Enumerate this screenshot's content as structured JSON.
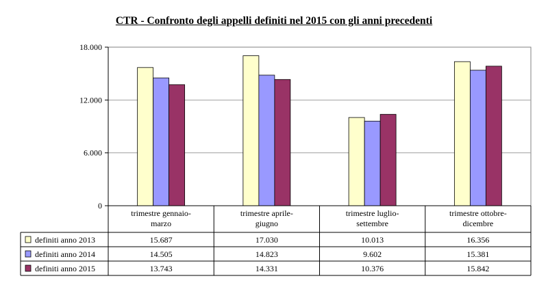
{
  "chart_data": {
    "type": "bar",
    "title": "CTR - Confronto degli appelli definiti nel 2015 con gli anni precedenti",
    "categories": [
      [
        "trimestre gennaio-",
        "marzo"
      ],
      [
        "trimestre aprile-",
        "giugno"
      ],
      [
        "trimestre luglio-",
        "settembre"
      ],
      [
        "trimestre ottobre-",
        "dicembre"
      ]
    ],
    "series": [
      {
        "name": "definiti anno 2013",
        "color": "#ffffcc",
        "values": [
          15687,
          17030,
          10013,
          16356
        ],
        "labels": [
          "15.687",
          "17.030",
          "10.013",
          "16.356"
        ]
      },
      {
        "name": "definiti anno 2014",
        "color": "#9999ff",
        "values": [
          14505,
          14823,
          9602,
          15381
        ],
        "labels": [
          "14.505",
          "14.823",
          "9.602",
          "15.381"
        ]
      },
      {
        "name": "definiti anno 2015",
        "color": "#993366",
        "values": [
          13743,
          14331,
          10376,
          15842
        ],
        "labels": [
          "13.743",
          "14.331",
          "10.376",
          "15.842"
        ]
      }
    ],
    "ylim": [
      0,
      18000
    ],
    "yticks": [
      0,
      6000,
      12000,
      18000
    ],
    "ytick_labels": [
      "0",
      "6.000",
      "12.000",
      "18.000"
    ],
    "grid": true,
    "legend": "data-table"
  }
}
